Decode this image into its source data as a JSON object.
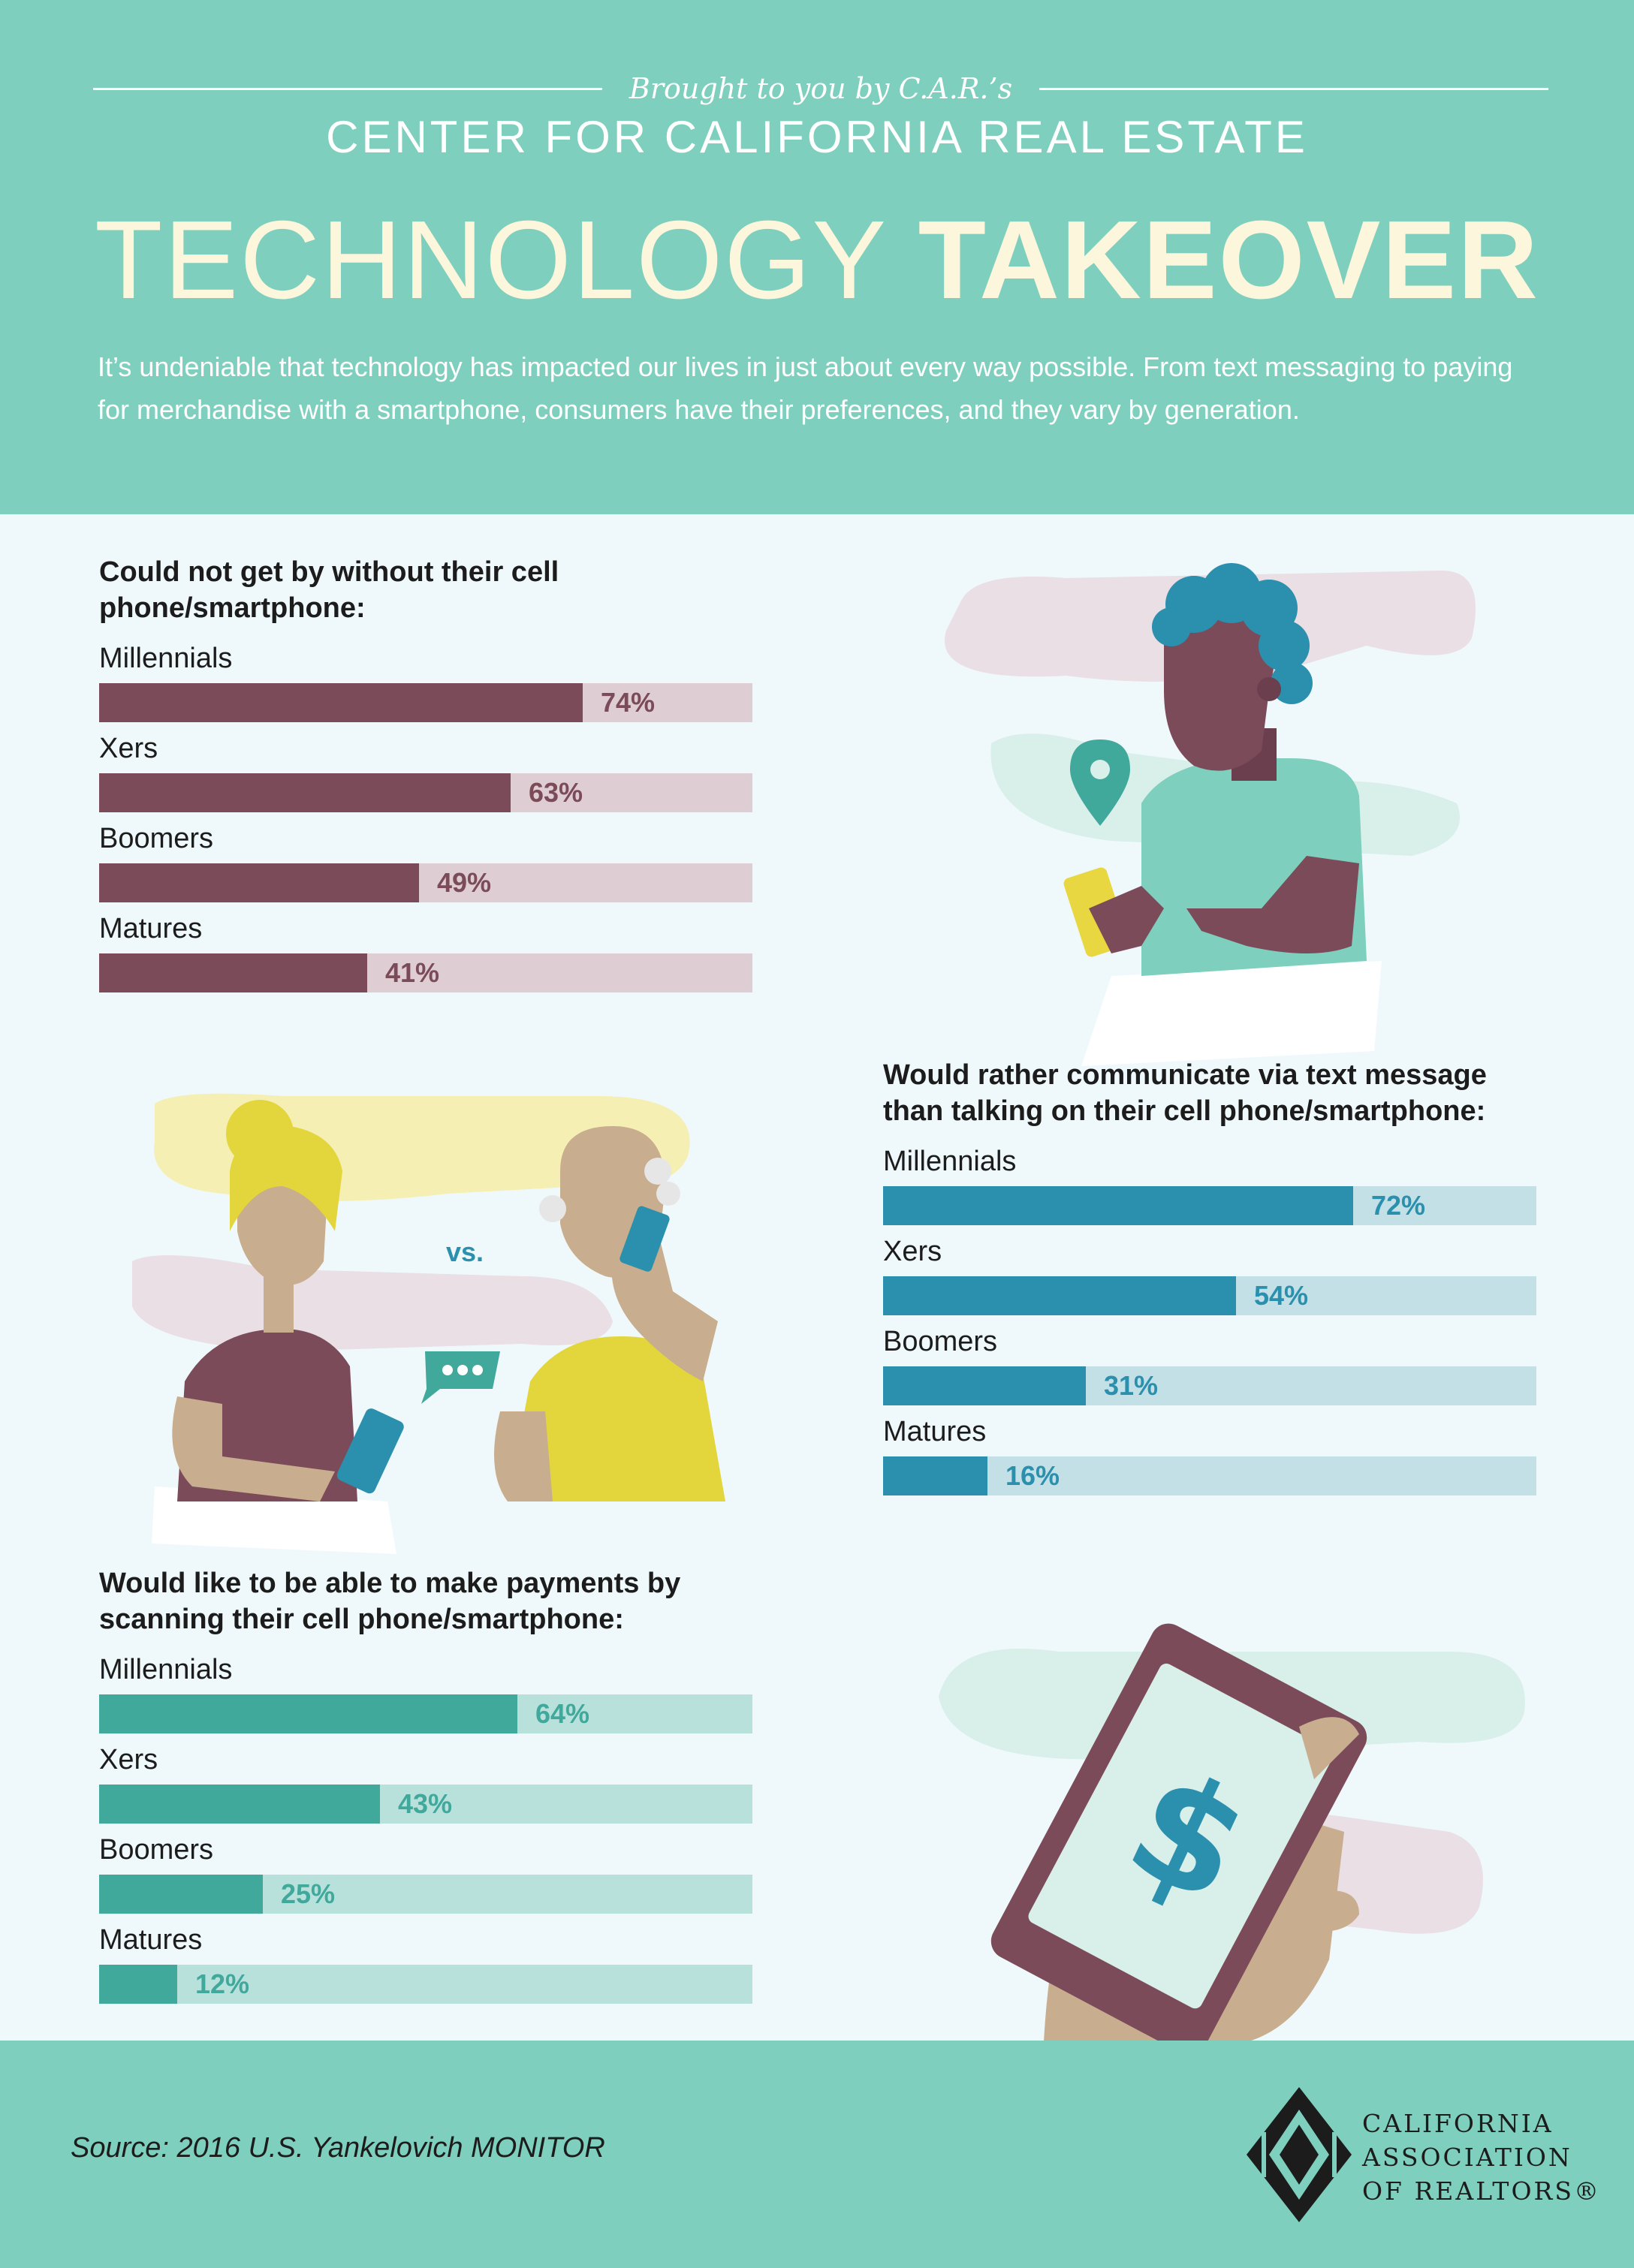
{
  "header": {
    "brought_by": "Brought to you by C.A.R.’s",
    "center": "CENTER FOR CALIFORNIA REAL ESTATE",
    "title_light": "TECHNOLOGY",
    "title_bold": "TAKEOVER",
    "intro": "It’s undeniable that technology has impacted our lives in just about every way possible. From text messaging to paying for merchandise with a smartphone, consumers have their preferences, and they vary by generation."
  },
  "illustration": {
    "vs_label": "vs."
  },
  "footer": {
    "source": "Source: 2016 U.S. Yankelovich MONITOR",
    "logo_line1": "CALIFORNIA",
    "logo_line2": "ASSOCIATION",
    "logo_line3": "OF REALTORS®"
  },
  "colors": {
    "header_bg": "#7ecfbd",
    "page_bg": "#eff9fb",
    "plum": "#7b4b5a",
    "plum_track": "#dfcdd4",
    "blue": "#2b8fae",
    "blue_track": "#c3e0e6",
    "teal": "#41a89c",
    "teal_track": "#b9e1dc"
  },
  "chart_data": [
    {
      "type": "bar",
      "title": "Could not get by without their cell phone/smartphone:",
      "categories": [
        "Millennials",
        "Xers",
        "Boomers",
        "Matures"
      ],
      "values": [
        74,
        63,
        49,
        41
      ],
      "labels": [
        "74%",
        "63%",
        "49%",
        "41%"
      ],
      "ylim": [
        0,
        100
      ],
      "fill_color": "#7b4b5a",
      "track_color": "#dfcdd4"
    },
    {
      "type": "bar",
      "title": "Would rather communicate via text message than talking on their cell phone/smartphone:",
      "categories": [
        "Millennials",
        "Xers",
        "Boomers",
        "Matures"
      ],
      "values": [
        72,
        54,
        31,
        16
      ],
      "labels": [
        "72%",
        "54%",
        "31%",
        "16%"
      ],
      "ylim": [
        0,
        100
      ],
      "fill_color": "#2b8fae",
      "track_color": "#c3e0e6"
    },
    {
      "type": "bar",
      "title": "Would like to be able to make payments by scanning their cell phone/smartphone:",
      "categories": [
        "Millennials",
        "Xers",
        "Boomers",
        "Matures"
      ],
      "values": [
        64,
        43,
        25,
        12
      ],
      "labels": [
        "64%",
        "43%",
        "25%",
        "12%"
      ],
      "ylim": [
        0,
        100
      ],
      "fill_color": "#41a89c",
      "track_color": "#b9e1dc"
    }
  ]
}
